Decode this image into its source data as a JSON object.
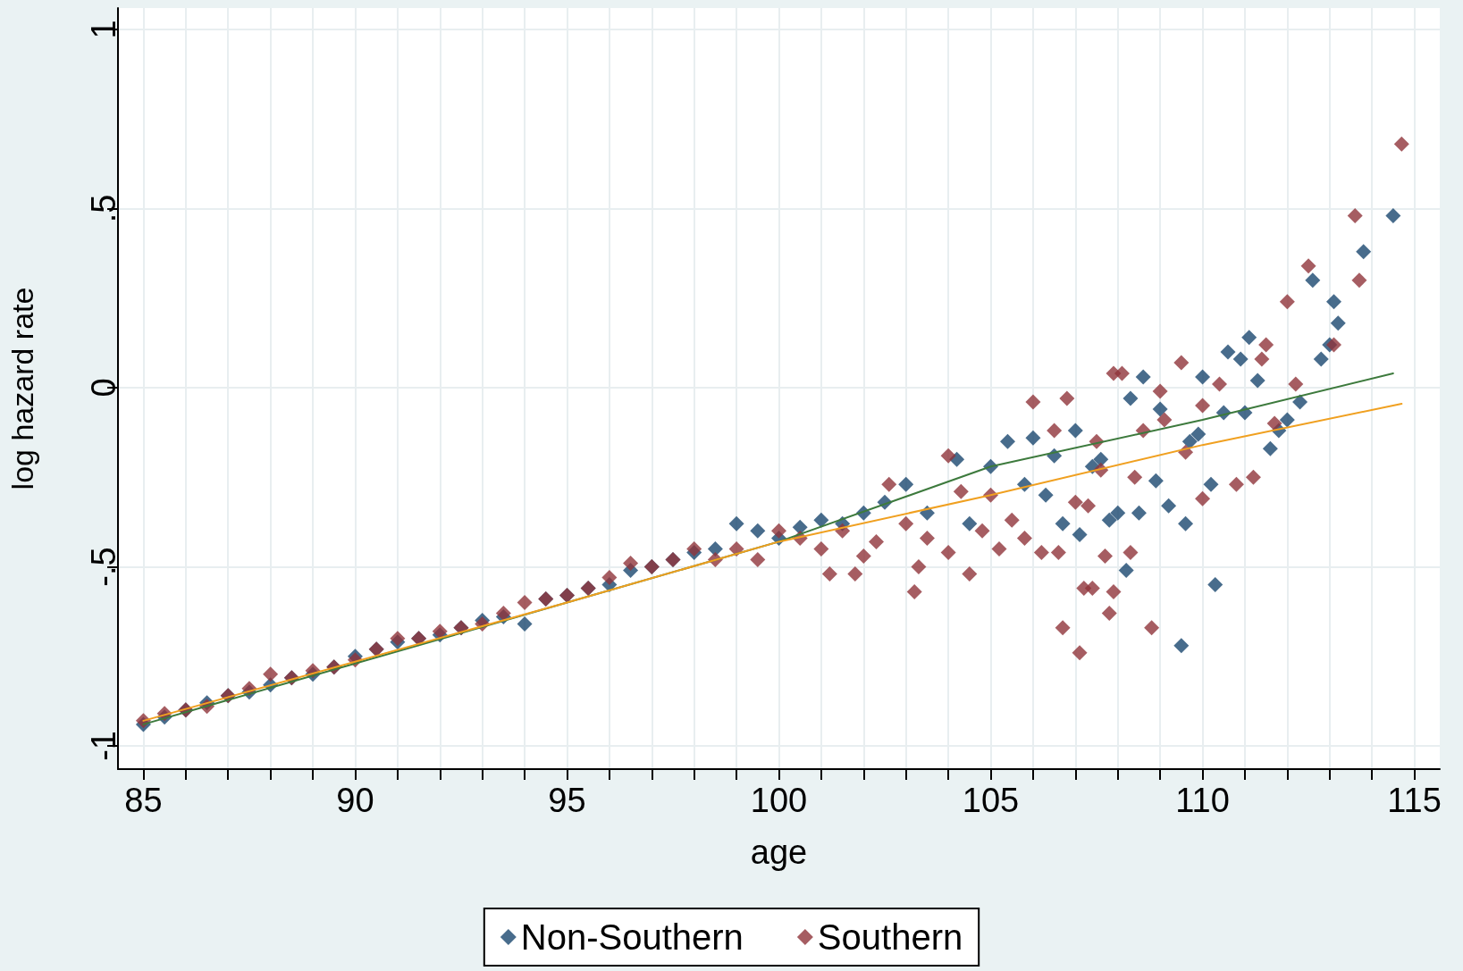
{
  "chart_data": {
    "type": "scatter",
    "xlabel": "age",
    "ylabel": "log hazard rate",
    "xlim": [
      84.4,
      115.6
    ],
    "ylim": [
      -1.065,
      1.06
    ],
    "xticks": [
      85,
      {
        "value": 86,
        "label": null
      },
      {
        "value": 87,
        "label": null
      },
      {
        "value": 88,
        "label": null
      },
      {
        "value": 89,
        "label": null
      },
      90,
      {
        "value": 91,
        "label": null
      },
      {
        "value": 92,
        "label": null
      },
      {
        "value": 93,
        "label": null
      },
      {
        "value": 94,
        "label": null
      },
      95,
      {
        "value": 96,
        "label": null
      },
      {
        "value": 97,
        "label": null
      },
      {
        "value": 98,
        "label": null
      },
      {
        "value": 99,
        "label": null
      },
      100,
      {
        "value": 101,
        "label": null
      },
      {
        "value": 102,
        "label": null
      },
      {
        "value": 103,
        "label": null
      },
      {
        "value": 104,
        "label": null
      },
      105,
      {
        "value": 106,
        "label": null
      },
      {
        "value": 107,
        "label": null
      },
      {
        "value": 108,
        "label": null
      },
      {
        "value": 109,
        "label": null
      },
      110,
      {
        "value": 111,
        "label": null
      },
      {
        "value": 112,
        "label": null
      },
      {
        "value": 113,
        "label": null
      },
      {
        "value": 114,
        "label": null
      },
      115
    ],
    "yticks": [
      -1,
      {
        "value": -0.5,
        "label": "-.5"
      },
      0,
      {
        "value": 0.5,
        "label": ".5"
      },
      1
    ],
    "grid": true,
    "legend": "bottom",
    "marker": "diamond",
    "series": [
      {
        "name": "Non-Southern",
        "color": "#1a476f",
        "x": [
          85,
          85.5,
          86,
          86.5,
          87,
          87.5,
          88,
          88.5,
          89,
          89.5,
          90,
          90.5,
          91,
          91.5,
          92,
          92.5,
          93,
          93.5,
          94,
          94.5,
          95,
          95.5,
          96,
          96.5,
          97,
          97.5,
          98,
          98.5,
          99,
          99.5,
          100,
          100.5,
          101,
          101.5,
          102,
          102.5,
          103,
          103.5,
          104.2,
          104.5,
          105,
          105.4,
          105.8,
          106,
          106.3,
          106.5,
          106.7,
          107,
          107.1,
          107.4,
          107.6,
          107.8,
          108,
          108.2,
          108.3,
          108.5,
          108.6,
          108.9,
          109,
          109.2,
          109.5,
          109.6,
          109.7,
          109.9,
          110,
          110.2,
          110.3,
          110.5,
          110.6,
          110.9,
          111,
          111.1,
          111.3,
          111.6,
          111.8,
          112,
          112.3,
          112.6,
          112.8,
          113,
          113.1,
          113.2,
          113.8,
          114.5
        ],
        "values": [
          -0.94,
          -0.92,
          -0.9,
          -0.88,
          -0.86,
          -0.85,
          -0.83,
          -0.81,
          -0.8,
          -0.78,
          -0.75,
          -0.73,
          -0.71,
          -0.7,
          -0.69,
          -0.67,
          -0.65,
          -0.64,
          -0.66,
          -0.59,
          -0.58,
          -0.56,
          -0.55,
          -0.51,
          -0.5,
          -0.48,
          -0.46,
          -0.45,
          -0.38,
          -0.4,
          -0.42,
          -0.39,
          -0.37,
          -0.38,
          -0.35,
          -0.32,
          -0.27,
          -0.35,
          -0.2,
          -0.38,
          -0.22,
          -0.15,
          -0.27,
          -0.14,
          -0.3,
          -0.19,
          -0.38,
          -0.12,
          -0.41,
          -0.22,
          -0.2,
          -0.37,
          -0.35,
          -0.51,
          -0.03,
          -0.35,
          0.03,
          -0.26,
          -0.06,
          -0.33,
          -0.72,
          -0.38,
          -0.15,
          -0.13,
          0.03,
          -0.27,
          -0.55,
          -0.07,
          0.1,
          0.08,
          -0.07,
          0.14,
          0.02,
          -0.17,
          -0.12,
          -0.09,
          -0.04,
          0.3,
          0.08,
          0.12,
          0.24,
          0.18,
          0.38,
          0.48
        ]
      },
      {
        "name": "Southern",
        "color": "#90353b",
        "x": [
          85,
          85.5,
          86,
          86.5,
          87,
          87.5,
          88,
          88.5,
          89,
          89.5,
          90,
          90.5,
          91,
          91.5,
          92,
          92.5,
          93,
          93.5,
          94,
          94.5,
          95,
          95.5,
          96,
          96.5,
          97,
          97.5,
          98,
          98.5,
          99,
          99.5,
          100,
          100.5,
          101,
          101.2,
          101.5,
          101.8,
          102,
          102.3,
          102.6,
          103,
          103.2,
          103.3,
          103.5,
          104,
          104,
          104.3,
          104.5,
          104.8,
          105,
          105.2,
          105.5,
          105.8,
          106,
          106.2,
          106.5,
          106.6,
          106.7,
          106.8,
          107,
          107.1,
          107.2,
          107.3,
          107.4,
          107.5,
          107.6,
          107.7,
          107.8,
          107.9,
          107.9,
          108.1,
          108.3,
          108.4,
          108.6,
          108.8,
          109,
          109.1,
          109.5,
          109.6,
          110,
          110,
          110.4,
          110.8,
          111.2,
          111.4,
          111.5,
          111.7,
          112,
          112.2,
          112.5,
          113.1,
          113.6,
          113.7,
          114.7
        ],
        "values": [
          -0.93,
          -0.91,
          -0.9,
          -0.89,
          -0.86,
          -0.84,
          -0.8,
          -0.81,
          -0.79,
          -0.78,
          -0.76,
          -0.73,
          -0.7,
          -0.7,
          -0.68,
          -0.67,
          -0.66,
          -0.63,
          -0.6,
          -0.59,
          -0.58,
          -0.56,
          -0.53,
          -0.49,
          -0.5,
          -0.48,
          -0.45,
          -0.48,
          -0.45,
          -0.48,
          -0.4,
          -0.42,
          -0.45,
          -0.52,
          -0.4,
          -0.52,
          -0.47,
          -0.43,
          -0.27,
          -0.38,
          -0.57,
          -0.5,
          -0.42,
          -0.19,
          -0.46,
          -0.29,
          -0.52,
          -0.4,
          -0.3,
          -0.45,
          -0.37,
          -0.42,
          -0.04,
          -0.46,
          -0.12,
          -0.46,
          -0.67,
          -0.03,
          -0.32,
          -0.74,
          -0.56,
          -0.33,
          -0.56,
          -0.15,
          -0.23,
          -0.47,
          -0.63,
          -0.57,
          0.04,
          0.04,
          -0.46,
          -0.25,
          -0.12,
          -0.67,
          -0.01,
          -0.09,
          0.07,
          -0.18,
          -0.05,
          -0.31,
          0.01,
          -0.27,
          -0.25,
          0.08,
          0.12,
          -0.1,
          0.24,
          0.01,
          0.34,
          0.12,
          0.48,
          0.3,
          0.68
        ]
      },
      {
        "type": "line",
        "color": "#3d7a3d",
        "marker": "none",
        "x": [
          85,
          95,
          100,
          105,
          110,
          114.5
        ],
        "values": [
          -0.94,
          -0.6,
          -0.43,
          -0.22,
          -0.09,
          0.04
        ]
      },
      {
        "type": "line",
        "color": "#f0a020",
        "marker": "none",
        "x": [
          85,
          95,
          100,
          105,
          110,
          114.7
        ],
        "values": [
          -0.93,
          -0.6,
          -0.43,
          -0.3,
          -0.16,
          -0.045
        ]
      }
    ]
  }
}
